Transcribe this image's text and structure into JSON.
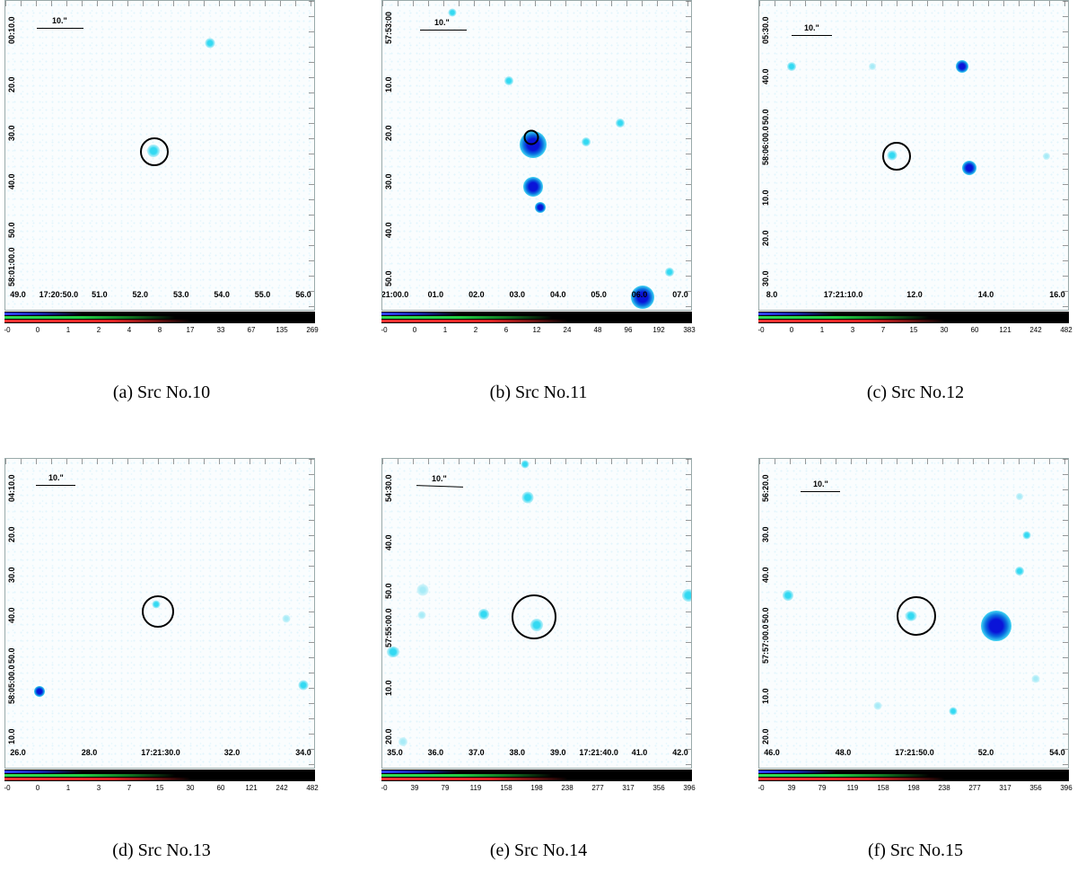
{
  "panels": [
    {
      "id": "a",
      "caption": "(a) Src No.10",
      "scale_label": "10.\"",
      "xlabels": [
        "49.0",
        "17:20:50.0",
        "51.0",
        "52.0",
        "53.0",
        "54.0",
        "55.0",
        "56.0"
      ],
      "ylabels": [
        "00:10.0",
        "20.0",
        "30.0",
        "40.0",
        "50.0",
        "58:01:00.0"
      ],
      "cticks": [
        "-0",
        "0",
        "1",
        "2",
        "4",
        "8",
        "17",
        "33",
        "67",
        "135",
        "269"
      ]
    },
    {
      "id": "b",
      "caption": "(b) Src No.11",
      "scale_label": "10.\"",
      "xlabels": [
        "21:00.0",
        "01.0",
        "02.0",
        "03.0",
        "04.0",
        "05.0",
        "06.0",
        "07.0"
      ],
      "ylabels": [
        "57:53:00",
        "10.0",
        "20.0",
        "30.0",
        "40.0",
        "50.0"
      ],
      "cticks": [
        "-0",
        "0",
        "1",
        "2",
        "6",
        "12",
        "24",
        "48",
        "96",
        "192",
        "383"
      ]
    },
    {
      "id": "c",
      "caption": "(c) Src No.12",
      "scale_label": "10.\"",
      "xlabels": [
        "8.0",
        "17:21:10.0",
        "12.0",
        "14.0",
        "16.0"
      ],
      "ylabels": [
        "05:30.0",
        "40.0",
        "50.0",
        "58:06:00.0",
        "10.0",
        "20.0",
        "30.0"
      ],
      "cticks": [
        "-0",
        "0",
        "1",
        "3",
        "7",
        "15",
        "30",
        "60",
        "121",
        "242",
        "482"
      ]
    },
    {
      "id": "d",
      "caption": "(d) Src No.13",
      "scale_label": "10.\"",
      "xlabels": [
        "26.0",
        "28.0",
        "17:21:30.0",
        "32.0",
        "34.0"
      ],
      "ylabels": [
        "04:10.0",
        "20.0",
        "30.0",
        "40.0",
        "50.0",
        "58:05:00.0",
        "10.0"
      ],
      "cticks": [
        "-0",
        "0",
        "1",
        "3",
        "7",
        "15",
        "30",
        "60",
        "121",
        "242",
        "482"
      ]
    },
    {
      "id": "e",
      "caption": "(e) Src No.14",
      "scale_label": "10.\"",
      "xlabels": [
        "35.0",
        "36.0",
        "37.0",
        "38.0",
        "39.0",
        "17:21:40.0",
        "41.0",
        "42.0"
      ],
      "ylabels": [
        "54:30.0",
        "40.0",
        "50.0",
        "57:55:00.0",
        "10.0",
        "20.0"
      ],
      "cticks": [
        "-0",
        "39",
        "79",
        "119",
        "158",
        "198",
        "238",
        "277",
        "317",
        "356",
        "396"
      ]
    },
    {
      "id": "f",
      "caption": "(f) Src No.15",
      "scale_label": "10.\"",
      "xlabels": [
        "46.0",
        "48.0",
        "17:21:50.0",
        "52.0",
        "54.0"
      ],
      "ylabels": [
        "56:20.0",
        "30.0",
        "40.0",
        "50.0",
        "57:57:00.0",
        "10.0",
        "20.0"
      ],
      "cticks": [
        "-0",
        "39",
        "79",
        "119",
        "158",
        "198",
        "238",
        "277",
        "317",
        "356",
        "396"
      ]
    }
  ]
}
